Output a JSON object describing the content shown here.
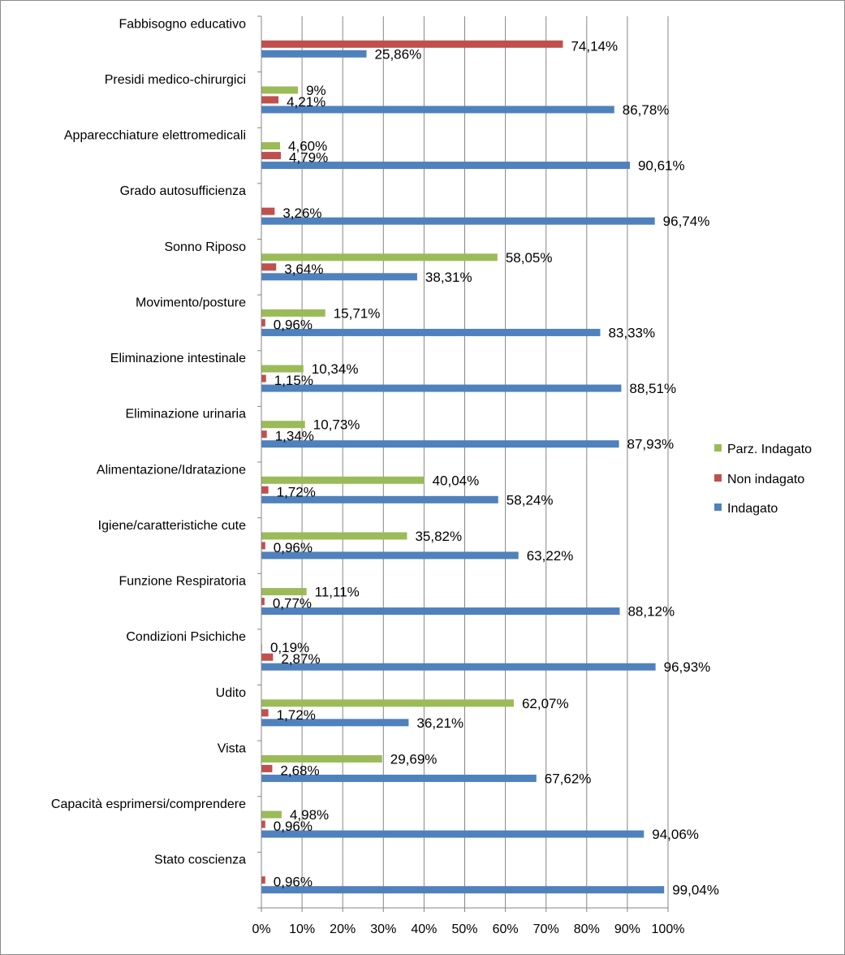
{
  "chart_data": {
    "type": "bar",
    "orientation": "horizontal",
    "categories": [
      "Fabbisogno educativo",
      "Presidi medico-chirurgici",
      "Apparecchiature elettromedicali",
      "Grado autosufficienza",
      "Sonno Riposo",
      "Movimento/posture",
      "Eliminazione intestinale",
      "Eliminazione urinaria",
      "Alimentazione/Idratazione",
      "Igiene/caratteristiche cute",
      "Funzione Respiratoria",
      "Condizioni Psichiche",
      "Udito",
      "Vista",
      "Capacità esprimersi/comprendere",
      "Stato coscienza"
    ],
    "series": [
      {
        "name": "Parz. Indagato",
        "color": "#9bbb59",
        "values": [
          null,
          9,
          4.6,
          null,
          58.05,
          15.71,
          10.34,
          10.73,
          40.04,
          35.82,
          11.11,
          0.19,
          62.07,
          29.69,
          4.98,
          null
        ],
        "labels": [
          null,
          "9%",
          "4,60%",
          null,
          "58,05%",
          "15,71%",
          "10,34%",
          "10,73%",
          "40,04%",
          "35,82%",
          "11,11%",
          "0,19%",
          "62,07%",
          "29,69%",
          "4,98%",
          null
        ]
      },
      {
        "name": "Non indagato",
        "color": "#c0504d",
        "values": [
          74.14,
          4.21,
          4.79,
          3.26,
          3.64,
          0.96,
          1.15,
          1.34,
          1.72,
          0.96,
          0.77,
          2.87,
          1.72,
          2.68,
          0.96,
          0.96
        ],
        "labels": [
          "74,14%",
          "4,21%",
          "4,79%",
          "3,26%",
          "3,64%",
          "0,96%",
          "1,15%",
          "1,34%",
          "1,72%",
          "0,96%",
          "0,77%",
          "2,87%",
          "1,72%",
          "2,68%",
          "0,96%",
          "0,96%"
        ]
      },
      {
        "name": "Indagato",
        "color": "#4f81bd",
        "values": [
          25.86,
          86.78,
          90.61,
          96.74,
          38.31,
          83.33,
          88.51,
          87.93,
          58.24,
          63.22,
          88.12,
          96.93,
          36.21,
          67.62,
          94.06,
          99.04
        ],
        "labels": [
          "25,86%",
          "86,78%",
          "90,61%",
          "96,74%",
          "38,31%",
          "83,33%",
          "88,51%",
          "87,93%",
          "58,24%",
          "63,22%",
          "88,12%",
          "96,93%",
          "36,21%",
          "67,62%",
          "94,06%",
          "99,04%"
        ]
      }
    ],
    "xlim": [
      0,
      100
    ],
    "xticks": [
      "0%",
      "10%",
      "20%",
      "30%",
      "40%",
      "50%",
      "60%",
      "70%",
      "80%",
      "90%",
      "100%"
    ],
    "grid": "vertical",
    "legend_placement": "right",
    "legend": [
      "Parz. Indagato",
      "Non indagato",
      "Indagato"
    ],
    "axis_color": "#868686",
    "grid_color": "#868686"
  }
}
